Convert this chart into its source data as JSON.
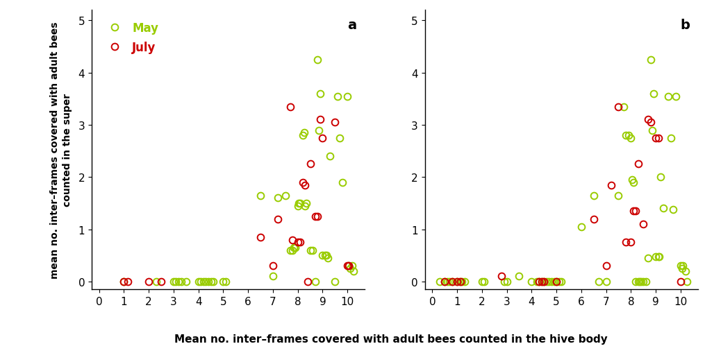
{
  "panel_a": {
    "may_x": [
      1.0,
      2.3,
      3.0,
      3.1,
      3.2,
      3.3,
      3.5,
      4.0,
      4.1,
      4.2,
      4.3,
      4.4,
      4.5,
      4.6,
      5.0,
      5.1,
      6.5,
      7.0,
      7.2,
      7.5,
      7.7,
      7.8,
      7.85,
      7.9,
      8.0,
      8.05,
      8.1,
      8.2,
      8.25,
      8.3,
      8.35,
      8.5,
      8.6,
      8.7,
      8.8,
      8.85,
      8.9,
      9.0,
      9.1,
      9.15,
      9.2,
      9.3,
      9.5,
      9.6,
      9.7,
      9.8,
      10.0,
      10.05,
      10.1,
      10.2,
      10.25
    ],
    "may_y": [
      0.0,
      0.0,
      0.0,
      0.0,
      0.0,
      0.0,
      0.0,
      0.0,
      0.0,
      0.0,
      0.0,
      0.0,
      0.0,
      0.0,
      0.0,
      0.0,
      1.65,
      0.1,
      1.6,
      1.65,
      0.6,
      0.6,
      0.65,
      0.65,
      1.45,
      1.5,
      1.5,
      2.8,
      2.85,
      1.45,
      1.5,
      0.6,
      0.6,
      0.0,
      4.25,
      2.9,
      3.6,
      0.5,
      0.5,
      0.5,
      0.45,
      2.4,
      0.0,
      3.55,
      2.75,
      1.9,
      3.55,
      0.3,
      0.25,
      0.3,
      0.2
    ],
    "july_x": [
      1.0,
      1.15,
      2.0,
      2.5,
      6.5,
      7.0,
      7.2,
      7.7,
      7.8,
      8.0,
      8.1,
      8.2,
      8.3,
      8.4,
      8.5,
      8.7,
      8.8,
      8.9,
      9.0,
      9.5,
      10.0,
      10.05
    ],
    "july_y": [
      0.0,
      0.0,
      0.0,
      0.0,
      0.85,
      0.3,
      1.2,
      3.35,
      0.8,
      0.75,
      0.75,
      1.9,
      1.85,
      0.0,
      2.25,
      1.25,
      1.25,
      3.1,
      2.75,
      3.05,
      0.3,
      0.3
    ]
  },
  "panel_b": {
    "may_x": [
      0.3,
      0.5,
      0.6,
      0.7,
      0.8,
      1.0,
      1.1,
      1.2,
      1.3,
      2.0,
      2.1,
      2.9,
      3.0,
      3.5,
      4.0,
      4.2,
      4.3,
      4.4,
      4.5,
      4.6,
      4.7,
      4.8,
      4.9,
      5.0,
      5.1,
      5.2,
      6.0,
      6.5,
      6.7,
      7.0,
      7.5,
      7.7,
      7.8,
      7.9,
      8.0,
      8.05,
      8.1,
      8.2,
      8.3,
      8.35,
      8.4,
      8.5,
      8.6,
      8.7,
      8.8,
      8.85,
      8.9,
      9.0,
      9.1,
      9.15,
      9.2,
      9.3,
      9.5,
      9.6,
      9.7,
      9.8,
      10.0,
      10.05,
      10.1,
      10.2,
      10.25
    ],
    "may_y": [
      0.0,
      0.0,
      0.0,
      0.0,
      0.0,
      0.0,
      0.0,
      0.0,
      0.0,
      0.0,
      0.0,
      0.0,
      0.0,
      0.1,
      0.0,
      0.0,
      0.0,
      0.0,
      0.0,
      0.0,
      0.0,
      0.0,
      0.0,
      0.0,
      0.0,
      0.0,
      1.05,
      1.65,
      0.0,
      0.0,
      1.65,
      3.35,
      2.8,
      2.8,
      2.75,
      1.95,
      1.9,
      0.0,
      0.0,
      0.0,
      0.0,
      0.0,
      0.0,
      0.45,
      4.25,
      2.9,
      3.6,
      0.48,
      0.48,
      0.48,
      2.0,
      1.4,
      3.55,
      2.75,
      1.38,
      3.55,
      0.3,
      0.25,
      0.3,
      0.2,
      0.0
    ],
    "july_x": [
      0.5,
      0.8,
      1.0,
      1.15,
      2.8,
      4.3,
      4.4,
      4.5,
      5.0,
      6.5,
      7.0,
      7.2,
      7.5,
      7.8,
      8.0,
      8.1,
      8.2,
      8.3,
      8.5,
      8.7,
      8.8,
      9.0,
      9.1,
      10.0
    ],
    "july_y": [
      0.0,
      0.0,
      0.0,
      0.0,
      0.1,
      0.0,
      0.0,
      0.0,
      0.0,
      1.2,
      0.3,
      1.85,
      3.35,
      0.75,
      0.75,
      1.35,
      1.35,
      2.25,
      1.1,
      3.1,
      3.05,
      2.75,
      2.75,
      0.0
    ]
  },
  "may_color": "#99cc00",
  "july_color": "#cc0000",
  "ylabel": "mean no. inter–frames covered with adult bees\ncounted in the super",
  "xlabel": "Mean no. inter–frames covered with adult bees counted in the hive body",
  "ylim": [
    -0.15,
    5.2
  ],
  "xlim": [
    -0.3,
    10.7
  ],
  "yticks": [
    0,
    1,
    2,
    3,
    4,
    5
  ],
  "xticks": [
    0,
    1,
    2,
    3,
    4,
    5,
    6,
    7,
    8,
    9,
    10
  ],
  "marker_size": 7,
  "linewidth": 1.4,
  "panel_a_label": "a",
  "panel_b_label": "b"
}
